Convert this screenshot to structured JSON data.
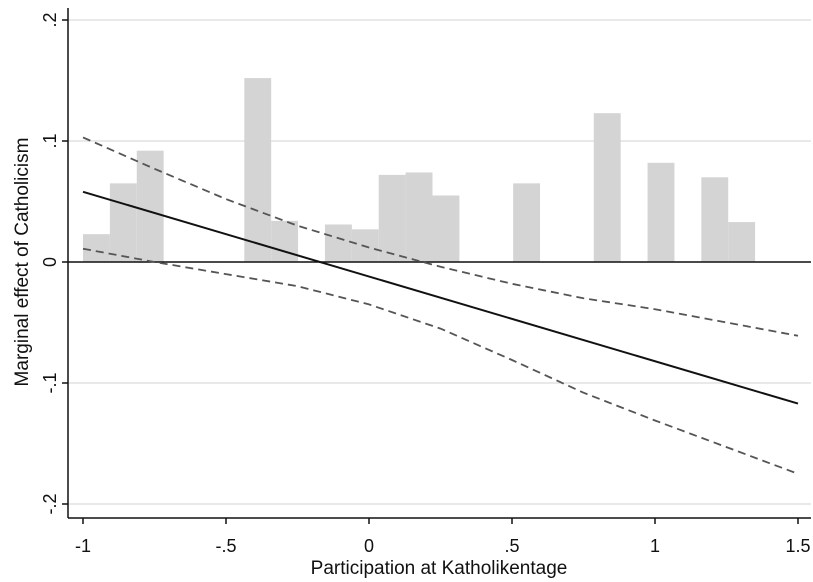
{
  "chart_data": {
    "type": "line",
    "title": "",
    "xlabel": "Participation at Katholikentage",
    "ylabel": "Marginal effect of Catholicism",
    "xlim": [
      -1.05,
      1.5
    ],
    "ylim": [
      -0.21,
      0.2
    ],
    "grid": true,
    "x_ticks": [
      {
        "value": -1,
        "label": "-1"
      },
      {
        "value": -0.5,
        "label": "-.5"
      },
      {
        "value": 0,
        "label": "0"
      },
      {
        "value": 0.5,
        "label": ".5"
      },
      {
        "value": 1,
        "label": "1"
      },
      {
        "value": 1.5,
        "label": "1.5"
      }
    ],
    "y_ticks": [
      {
        "value": 0.2,
        "label": ".2"
      },
      {
        "value": 0.1,
        "label": ".1"
      },
      {
        "value": 0,
        "label": "0"
      },
      {
        "value": -0.1,
        "label": "-.1"
      },
      {
        "value": -0.2,
        "label": "-.2"
      }
    ],
    "histogram": {
      "bin_width": 0.094,
      "bins": [
        {
          "x": -0.953,
          "height": 0.023
        },
        {
          "x": -0.859,
          "height": 0.065
        },
        {
          "x": -0.765,
          "height": 0.092
        },
        {
          "x": -0.389,
          "height": 0.152
        },
        {
          "x": -0.295,
          "height": 0.034
        },
        {
          "x": -0.107,
          "height": 0.031
        },
        {
          "x": -0.013,
          "height": 0.027
        },
        {
          "x": 0.081,
          "height": 0.072
        },
        {
          "x": 0.175,
          "height": 0.074
        },
        {
          "x": 0.269,
          "height": 0.055
        },
        {
          "x": 0.551,
          "height": 0.065
        },
        {
          "x": 0.833,
          "height": 0.123
        },
        {
          "x": 1.021,
          "height": 0.082
        },
        {
          "x": 1.209,
          "height": 0.07
        },
        {
          "x": 1.303,
          "height": 0.033
        }
      ],
      "color": "#d4d4d4"
    },
    "series": [
      {
        "values": [
          {
            "x": -1,
            "y": 0.058
          },
          {
            "x": 1.5,
            "y": -0.117
          }
        ],
        "style": "solid",
        "color": "#111111"
      },
      {
        "values": [
          {
            "x": -1,
            "y": 0.103
          },
          {
            "x": -0.75,
            "y": 0.077
          },
          {
            "x": -0.5,
            "y": 0.052
          },
          {
            "x": -0.25,
            "y": 0.03
          },
          {
            "x": 0,
            "y": 0.012
          },
          {
            "x": 0.25,
            "y": -0.004
          },
          {
            "x": 0.5,
            "y": -0.018
          },
          {
            "x": 0.75,
            "y": -0.03
          },
          {
            "x": 1,
            "y": -0.039
          },
          {
            "x": 1.25,
            "y": -0.05
          },
          {
            "x": 1.5,
            "y": -0.061
          }
        ],
        "style": "dashed",
        "color": "#555555"
      },
      {
        "values": [
          {
            "x": -1,
            "y": 0.011
          },
          {
            "x": -0.75,
            "y": 0.0
          },
          {
            "x": -0.5,
            "y": -0.01
          },
          {
            "x": -0.25,
            "y": -0.02
          },
          {
            "x": 0,
            "y": -0.035
          },
          {
            "x": 0.25,
            "y": -0.055
          },
          {
            "x": 0.5,
            "y": -0.081
          },
          {
            "x": 0.75,
            "y": -0.108
          },
          {
            "x": 1,
            "y": -0.131
          },
          {
            "x": 1.25,
            "y": -0.153
          },
          {
            "x": 1.5,
            "y": -0.175
          }
        ],
        "style": "dashed",
        "color": "#555555"
      }
    ],
    "reference_line": {
      "y": 0,
      "color": "#111111"
    },
    "colors": {
      "grid": "#dcdcdc",
      "axis": "#111111"
    }
  }
}
